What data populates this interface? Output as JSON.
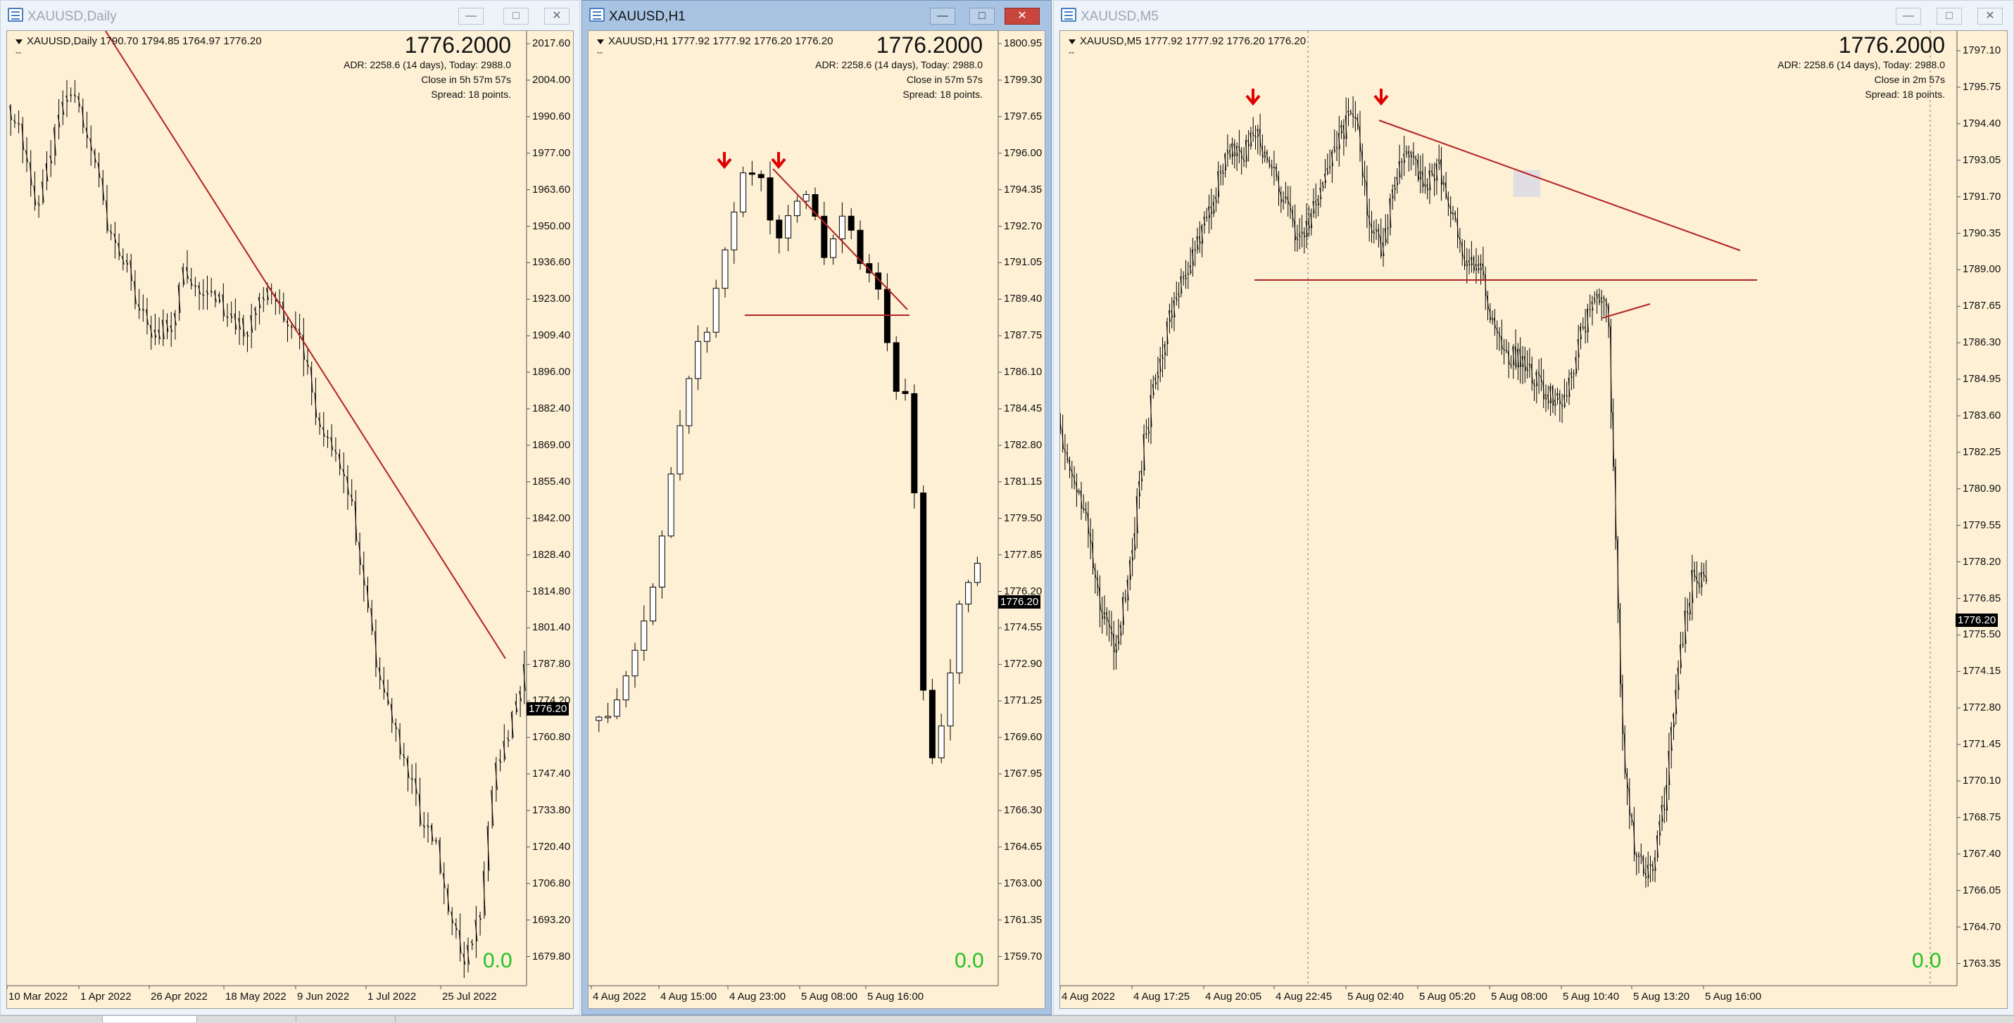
{
  "colors": {
    "chart_bg": "#fdf0d5",
    "candle": "#000000",
    "trendline": "#b22222",
    "arrow": "#e00000",
    "pnl": "#21c321",
    "current_price_tag": "#000000"
  },
  "windows": [
    {
      "id": "daily",
      "title": "XAUUSD,Daily",
      "active": false,
      "symbol_info": "XAUUSD,Daily  1790.70 1794.85 1764.97 1776.20",
      "sub_info": "--",
      "big_price": "1776.2000",
      "meta": [
        "ADR: 2258.6 (14 days), Today: 2988.0",
        "Close in 5h 57m 57s",
        "Spread: 18 points."
      ],
      "current_price": "1776.20",
      "pnl": "0.0",
      "y_ticks": [
        "2017.60",
        "2004.00",
        "1990.60",
        "1977.00",
        "1963.60",
        "1950.00",
        "1936.60",
        "1923.00",
        "1909.40",
        "1896.00",
        "1882.40",
        "1869.00",
        "1855.40",
        "1842.00",
        "1828.40",
        "1814.80",
        "1801.40",
        "1787.80",
        "1774.20",
        "1760.80",
        "1747.40",
        "1733.80",
        "1720.40",
        "1706.80",
        "1693.20",
        "1679.80"
      ],
      "x_ticks": [
        "10 Mar 2022",
        "1 Apr 2022",
        "26 Apr 2022",
        "18 May 2022",
        "9 Jun 2022",
        "1 Jul 2022",
        "25 Jul 2022"
      ],
      "arrows": 0
    },
    {
      "id": "h1",
      "title": "XAUUSD,H1",
      "active": true,
      "symbol_info": "XAUUSD,H1  1777.92 1777.92 1776.20 1776.20",
      "sub_info": "--",
      "big_price": "1776.2000",
      "meta": [
        "ADR: 2258.6 (14 days), Today: 2988.0",
        "Close in 57m 57s",
        "Spread: 18 points."
      ],
      "current_price": "1776.20",
      "pnl": "0.0",
      "y_ticks": [
        "1800.95",
        "1799.30",
        "1797.65",
        "1796.00",
        "1794.35",
        "1792.70",
        "1791.05",
        "1789.40",
        "1787.75",
        "1786.10",
        "1784.45",
        "1782.80",
        "1781.15",
        "1779.50",
        "1777.85",
        "1776.20",
        "1774.55",
        "1772.90",
        "1771.25",
        "1769.60",
        "1767.95",
        "1766.30",
        "1764.65",
        "1763.00",
        "1761.35",
        "1759.70"
      ],
      "x_ticks": [
        "4 Aug 2022",
        "4 Aug 15:00",
        "4 Aug 23:00",
        "5 Aug 08:00",
        "5 Aug 16:00"
      ],
      "arrows": 2
    },
    {
      "id": "m5",
      "title": "XAUUSD,M5",
      "active": false,
      "symbol_info": "XAUUSD,M5  1777.92 1777.92 1776.20 1776.20",
      "sub_info": "--",
      "big_price": "1776.2000",
      "meta": [
        "ADR: 2258.6 (14 days), Today: 2988.0",
        "Close in 2m 57s",
        "Spread: 18 points."
      ],
      "current_price": "1776.20",
      "pnl": "0.0",
      "y_ticks": [
        "1797.10",
        "1795.75",
        "1794.40",
        "1793.05",
        "1791.70",
        "1790.35",
        "1789.00",
        "1787.65",
        "1786.30",
        "1784.95",
        "1783.60",
        "1782.25",
        "1780.90",
        "1779.55",
        "1778.20",
        "1776.85",
        "1775.50",
        "1774.15",
        "1772.80",
        "1771.45",
        "1770.10",
        "1768.75",
        "1767.40",
        "1766.05",
        "1764.70",
        "1763.35"
      ],
      "x_ticks": [
        "4 Aug 2022",
        "4 Aug 17:25",
        "4 Aug 20:05",
        "4 Aug 22:45",
        "5 Aug 02:40",
        "5 Aug 05:20",
        "5 Aug 08:00",
        "5 Aug 10:40",
        "5 Aug 13:20",
        "5 Aug 16:00"
      ],
      "arrows": 2
    }
  ]
}
